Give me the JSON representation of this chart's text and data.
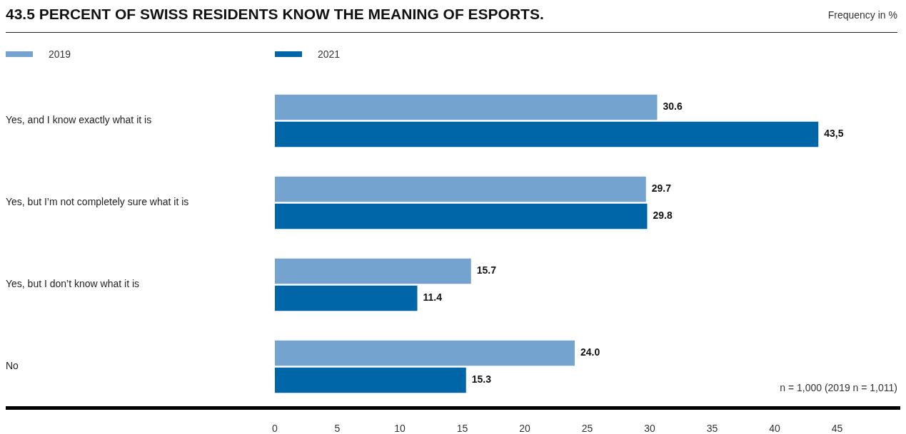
{
  "chart_data": {
    "type": "bar",
    "orientation": "horizontal",
    "title": "43.5 PERCENT OF SWISS RESIDENTS KNOW THE MEANING OF ESPORTS.",
    "subtitle": "Frequency in %",
    "categories": [
      "Yes, and I know exactly what it is",
      "Yes, but I’m not completely sure what it is",
      "Yes, but I don’t know what it is",
      "No"
    ],
    "series": [
      {
        "name": "2019",
        "color": "#74a3cf",
        "values": [
          30.6,
          29.7,
          15.7,
          24.0
        ],
        "value_labels": [
          "30.6",
          "29.7",
          "15.7",
          "24.0"
        ]
      },
      {
        "name": "2021",
        "color": "#0066a8",
        "values": [
          43.5,
          29.8,
          11.4,
          15.3
        ],
        "value_labels": [
          "43,5",
          "29.8",
          "11.4",
          "15.3"
        ]
      }
    ],
    "xlim": [
      0,
      50
    ],
    "xticks": [
      0,
      5,
      10,
      15,
      20,
      25,
      30,
      35,
      40,
      45
    ],
    "grid": false,
    "legend": "top",
    "annotations": [
      "n = 1,000 (2019 n = 1,011)"
    ]
  }
}
